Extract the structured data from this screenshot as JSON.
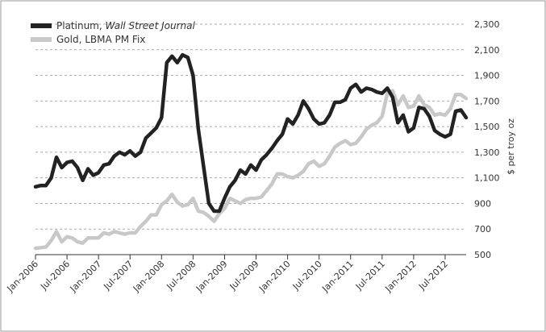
{
  "chart_data": {
    "type": "line",
    "title": "",
    "xlabel": "",
    "ylabel": "$ per troy oz",
    "ylim": [
      500,
      2300
    ],
    "yticks": [
      500,
      700,
      900,
      1100,
      1300,
      1500,
      1700,
      1900,
      2100,
      2300
    ],
    "ytick_labels": [
      "500",
      "700",
      "900",
      "1,100",
      "1,300",
      "1,500",
      "1,700",
      "1,900",
      "2,100",
      "2,300"
    ],
    "xticks": [
      "Jan-2006",
      "Jul-2006",
      "Jan-2007",
      "Jul-2007",
      "Jan-2008",
      "Jul-2008",
      "Jan-2009",
      "Jul-2009",
      "Jan-2010",
      "Jul-2010",
      "Jan-2011",
      "Jul-2011",
      "Jan-2012",
      "Jul-2012"
    ],
    "grid": "horizontal dashed",
    "legend_position": "top-left",
    "x": [
      "2006-01",
      "2006-02",
      "2006-03",
      "2006-04",
      "2006-05",
      "2006-06",
      "2006-07",
      "2006-08",
      "2006-09",
      "2006-10",
      "2006-11",
      "2006-12",
      "2007-01",
      "2007-02",
      "2007-03",
      "2007-04",
      "2007-05",
      "2007-06",
      "2007-07",
      "2007-08",
      "2007-09",
      "2007-10",
      "2007-11",
      "2007-12",
      "2008-01",
      "2008-02",
      "2008-03",
      "2008-04",
      "2008-05",
      "2008-06",
      "2008-07",
      "2008-08",
      "2008-09",
      "2008-10",
      "2008-11",
      "2008-12",
      "2009-01",
      "2009-02",
      "2009-03",
      "2009-04",
      "2009-05",
      "2009-06",
      "2009-07",
      "2009-08",
      "2009-09",
      "2009-10",
      "2009-11",
      "2009-12",
      "2010-01",
      "2010-02",
      "2010-03",
      "2010-04",
      "2010-05",
      "2010-06",
      "2010-07",
      "2010-08",
      "2010-09",
      "2010-10",
      "2010-11",
      "2010-12",
      "2011-01",
      "2011-02",
      "2011-03",
      "2011-04",
      "2011-05",
      "2011-06",
      "2011-07",
      "2011-08",
      "2011-09",
      "2011-10",
      "2011-11",
      "2011-12",
      "2012-01",
      "2012-02",
      "2012-03",
      "2012-04",
      "2012-05",
      "2012-06",
      "2012-07",
      "2012-08",
      "2012-09",
      "2012-10",
      "2012-11"
    ],
    "series": [
      {
        "name": "Platinum, ",
        "name_italic": "Wall Street Journal",
        "color": "#222222",
        "values": [
          1030,
          1040,
          1040,
          1100,
          1260,
          1180,
          1220,
          1230,
          1180,
          1080,
          1170,
          1120,
          1140,
          1200,
          1210,
          1270,
          1300,
          1280,
          1310,
          1270,
          1300,
          1410,
          1450,
          1490,
          1570,
          2000,
          2050,
          2000,
          2060,
          2040,
          1900,
          1480,
          1190,
          900,
          840,
          840,
          940,
          1030,
          1080,
          1160,
          1130,
          1200,
          1160,
          1240,
          1280,
          1330,
          1390,
          1440,
          1560,
          1520,
          1590,
          1700,
          1640,
          1560,
          1520,
          1530,
          1590,
          1690,
          1690,
          1710,
          1800,
          1830,
          1770,
          1800,
          1790,
          1770,
          1760,
          1800,
          1730,
          1530,
          1590,
          1460,
          1490,
          1650,
          1640,
          1580,
          1470,
          1440,
          1420,
          1440,
          1620,
          1630,
          1570
        ]
      },
      {
        "name": "Gold, LBMA PM Fix",
        "color": "#c8c8c8",
        "values": [
          550,
          555,
          560,
          610,
          680,
          600,
          640,
          630,
          600,
          590,
          630,
          630,
          630,
          670,
          660,
          680,
          670,
          660,
          670,
          670,
          720,
          760,
          810,
          810,
          890,
          920,
          970,
          910,
          880,
          890,
          940,
          840,
          830,
          800,
          760,
          820,
          860,
          940,
          920,
          900,
          930,
          940,
          940,
          950,
          1000,
          1050,
          1130,
          1130,
          1110,
          1100,
          1120,
          1150,
          1210,
          1230,
          1190,
          1210,
          1270,
          1340,
          1370,
          1390,
          1360,
          1370,
          1420,
          1480,
          1510,
          1530,
          1580,
          1760,
          1780,
          1670,
          1740,
          1650,
          1660,
          1740,
          1670,
          1650,
          1590,
          1600,
          1590,
          1640,
          1750,
          1750,
          1720
        ]
      }
    ]
  }
}
